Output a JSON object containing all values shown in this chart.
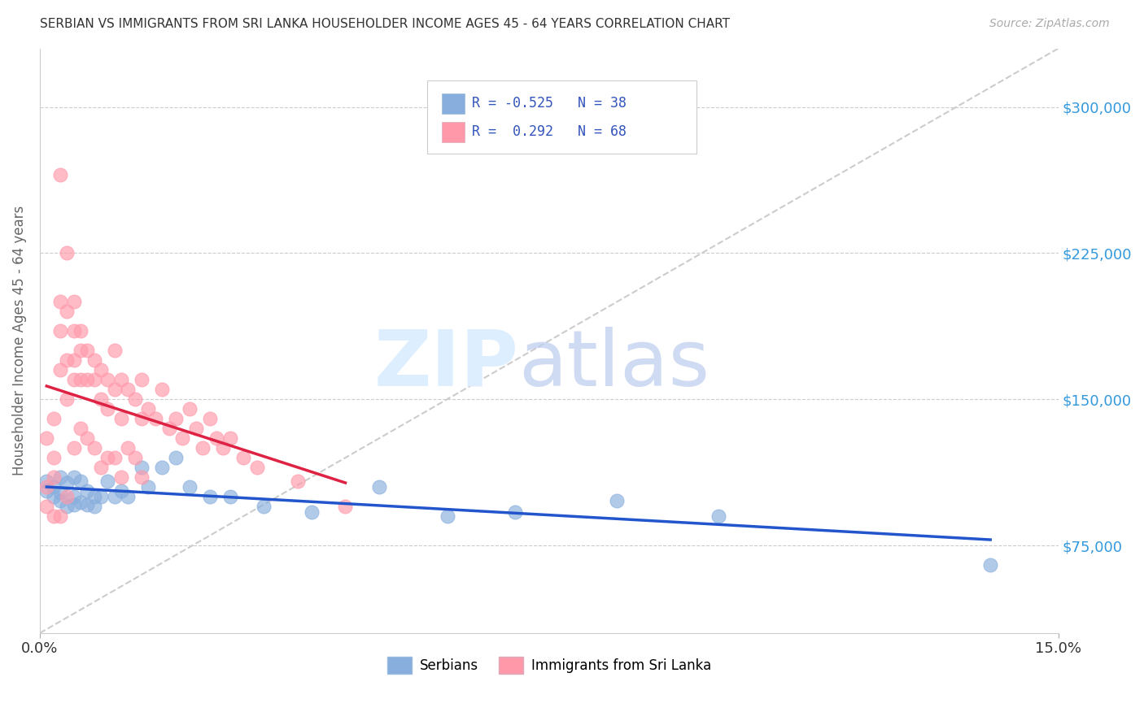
{
  "title": "SERBIAN VS IMMIGRANTS FROM SRI LANKA HOUSEHOLDER INCOME AGES 45 - 64 YEARS CORRELATION CHART",
  "source": "Source: ZipAtlas.com",
  "ylabel": "Householder Income Ages 45 - 64 years",
  "ytick_labels": [
    "$75,000",
    "$150,000",
    "$225,000",
    "$300,000"
  ],
  "ytick_values": [
    75000,
    150000,
    225000,
    300000
  ],
  "xlim": [
    0.0,
    0.15
  ],
  "ylim": [
    30000,
    330000
  ],
  "background_color": "#ffffff",
  "legend_r_blue": "-0.525",
  "legend_n_blue": "38",
  "legend_r_pink": "0.292",
  "legend_n_pink": "68",
  "blue_color": "#88AEDD",
  "pink_color": "#FF99AA",
  "diagonal_color": "#CCCCCC",
  "blue_line_color": "#2255CC",
  "pink_line_color": "#DD2244",
  "serbians_x": [
    0.001,
    0.001,
    0.002,
    0.002,
    0.003,
    0.003,
    0.003,
    0.004,
    0.004,
    0.005,
    0.005,
    0.005,
    0.006,
    0.006,
    0.007,
    0.007,
    0.008,
    0.008,
    0.009,
    0.01,
    0.011,
    0.012,
    0.013,
    0.015,
    0.016,
    0.018,
    0.02,
    0.022,
    0.025,
    0.028,
    0.033,
    0.04,
    0.05,
    0.06,
    0.07,
    0.085,
    0.1,
    0.14
  ],
  "serbians_y": [
    108000,
    103000,
    105000,
    100000,
    110000,
    102000,
    98000,
    107000,
    95000,
    110000,
    100000,
    96000,
    108000,
    97000,
    103000,
    96000,
    100000,
    95000,
    100000,
    108000,
    100000,
    103000,
    100000,
    115000,
    105000,
    115000,
    120000,
    105000,
    100000,
    100000,
    95000,
    92000,
    105000,
    90000,
    92000,
    98000,
    90000,
    65000
  ],
  "srilanka_x": [
    0.001,
    0.001,
    0.001,
    0.002,
    0.002,
    0.002,
    0.002,
    0.003,
    0.003,
    0.003,
    0.003,
    0.003,
    0.004,
    0.004,
    0.004,
    0.004,
    0.004,
    0.005,
    0.005,
    0.005,
    0.005,
    0.005,
    0.006,
    0.006,
    0.006,
    0.006,
    0.007,
    0.007,
    0.007,
    0.008,
    0.008,
    0.008,
    0.009,
    0.009,
    0.009,
    0.01,
    0.01,
    0.01,
    0.011,
    0.011,
    0.011,
    0.012,
    0.012,
    0.012,
    0.013,
    0.013,
    0.014,
    0.014,
    0.015,
    0.015,
    0.015,
    0.016,
    0.017,
    0.018,
    0.019,
    0.02,
    0.021,
    0.022,
    0.023,
    0.024,
    0.025,
    0.026,
    0.027,
    0.028,
    0.03,
    0.032,
    0.038,
    0.045
  ],
  "srilanka_y": [
    130000,
    105000,
    95000,
    140000,
    120000,
    110000,
    90000,
    265000,
    200000,
    185000,
    165000,
    90000,
    225000,
    195000,
    170000,
    150000,
    100000,
    200000,
    185000,
    170000,
    160000,
    125000,
    185000,
    175000,
    160000,
    135000,
    175000,
    160000,
    130000,
    170000,
    160000,
    125000,
    165000,
    150000,
    115000,
    160000,
    145000,
    120000,
    175000,
    155000,
    120000,
    160000,
    140000,
    110000,
    155000,
    125000,
    150000,
    120000,
    160000,
    140000,
    110000,
    145000,
    140000,
    155000,
    135000,
    140000,
    130000,
    145000,
    135000,
    125000,
    140000,
    130000,
    125000,
    130000,
    120000,
    115000,
    108000,
    95000
  ]
}
